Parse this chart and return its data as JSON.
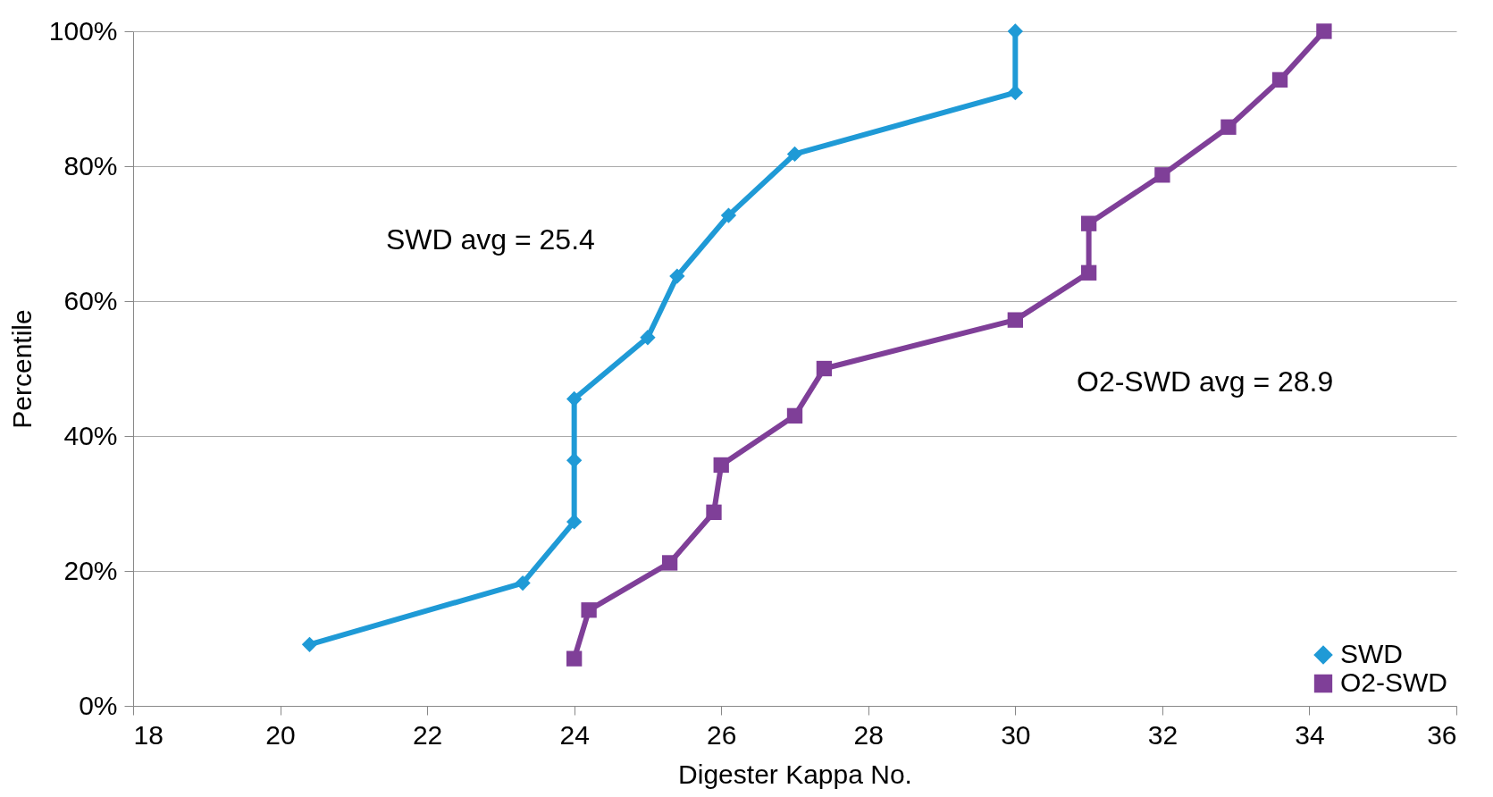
{
  "chart_data": {
    "type": "line",
    "xlabel": "Digester Kappa No.",
    "ylabel": "Percentile",
    "xlim": [
      18,
      36
    ],
    "xticks": [
      18,
      20,
      22,
      24,
      26,
      28,
      30,
      32,
      34,
      36
    ],
    "ylim": [
      0,
      100
    ],
    "yticks": [
      {
        "value": 0,
        "label": "0%"
      },
      {
        "value": 20,
        "label": "20%"
      },
      {
        "value": 40,
        "label": "40%"
      },
      {
        "value": 60,
        "label": "60%"
      },
      {
        "value": 80,
        "label": "80%"
      },
      {
        "value": 100,
        "label": "100%"
      }
    ],
    "grid": "y",
    "legend": "bottom right",
    "series": [
      {
        "name": "SWD",
        "color": "#1f9ad6",
        "marker": "diamond",
        "x": [
          20.4,
          23.3,
          24.0,
          24.0,
          24.0,
          25.0,
          25.4,
          26.1,
          27.0,
          30.0,
          30.0
        ],
        "values": [
          9.1,
          18.2,
          27.3,
          36.4,
          45.5,
          54.6,
          63.7,
          72.7,
          81.8,
          90.9,
          100
        ]
      },
      {
        "name": "O2-SWD",
        "color": "#7f3f98",
        "marker": "square",
        "x": [
          24.0,
          24.2,
          25.3,
          25.9,
          26.0,
          27.0,
          27.4,
          30.0,
          31.0,
          31.0,
          32.0,
          32.9,
          33.6,
          34.2
        ],
        "values": [
          7.0,
          14.2,
          21.2,
          28.7,
          35.7,
          43.0,
          50.0,
          57.2,
          64.2,
          71.5,
          78.7,
          85.8,
          92.8,
          100
        ]
      }
    ],
    "annotations": [
      "SWD avg = 25.4",
      "O2-SWD avg = 28.9"
    ]
  }
}
